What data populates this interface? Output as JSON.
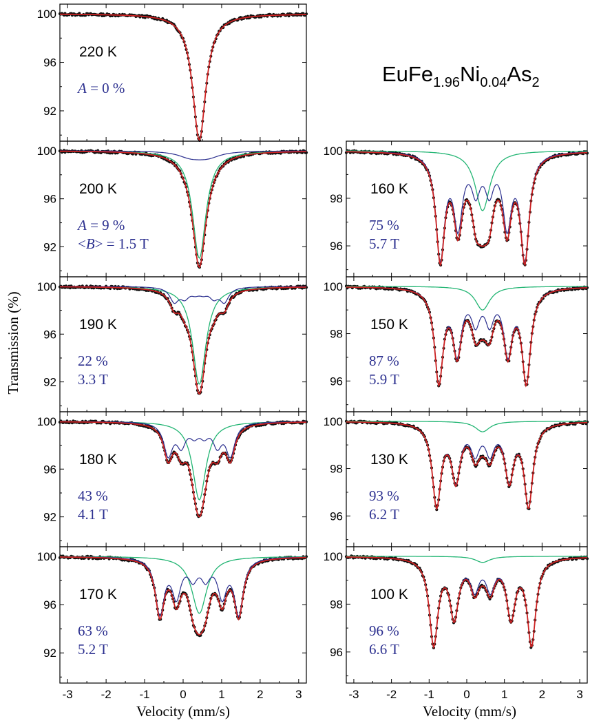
{
  "chart_data": {
    "type": "line",
    "compound": {
      "base": "EuFe",
      "sub1": "1.96",
      "mid": "Ni",
      "sub2": "0.04",
      "end": "As",
      "sub3": "2"
    },
    "ylabel": "Transmission (%)",
    "xlabel": "Velocity (mm/s)",
    "xlim": [
      -3.2,
      3.2
    ],
    "xticks": [
      "-3",
      "-2",
      "-1",
      "0",
      "1",
      "2",
      "3"
    ],
    "colors": {
      "data": "#111111",
      "fit": "#cc2222",
      "magnetic": "#2b2f8f",
      "paramagnetic": "#22b573",
      "annotation": "#2b2f8f"
    },
    "panels": [
      {
        "id": "220K",
        "col": 0,
        "row": 0,
        "temp": "220 K",
        "ann1_prefix": "",
        "ann1_var": "A",
        "ann1_text": " = 0 %",
        "ann2_prefix": "",
        "ann2_var": "",
        "ann2_text": "",
        "mag_fraction": 0.0,
        "field_T": 0.0,
        "ylim": [
          89.5,
          100.8
        ],
        "yticks": [
          "100",
          "96",
          "92"
        ],
        "min_transmission": 89.6
      },
      {
        "id": "200K",
        "col": 0,
        "row": 1,
        "temp": "200 K",
        "ann1_prefix": "",
        "ann1_var": "A",
        "ann1_text": " = 9 %",
        "ann2_prefix": "<",
        "ann2_var": "B",
        "ann2_text": "> = 1.5 T",
        "mag_fraction": 0.09,
        "field_T": 1.5,
        "ylim": [
          89.5,
          100.8
        ],
        "yticks": [
          "100",
          "96",
          "92"
        ],
        "min_transmission": 90.3
      },
      {
        "id": "190K",
        "col": 0,
        "row": 2,
        "temp": "190 K",
        "ann1_prefix": "",
        "ann1_var": "",
        "ann1_text": "22 %",
        "ann2_prefix": "",
        "ann2_var": "",
        "ann2_text": "3.3 T",
        "mag_fraction": 0.22,
        "field_T": 3.3,
        "ylim": [
          89.5,
          100.8
        ],
        "yticks": [
          "100",
          "96",
          "92"
        ],
        "min_transmission": 91.0
      },
      {
        "id": "180K",
        "col": 0,
        "row": 3,
        "temp": "180 K",
        "ann1_prefix": "",
        "ann1_var": "",
        "ann1_text": "43 %",
        "ann2_prefix": "",
        "ann2_var": "",
        "ann2_text": "4.1 T",
        "mag_fraction": 0.43,
        "field_T": 4.1,
        "ylim": [
          89.5,
          100.8
        ],
        "yticks": [
          "100",
          "96",
          "92"
        ],
        "min_transmission": 92.0
      },
      {
        "id": "170K",
        "col": 0,
        "row": 4,
        "temp": "170 K",
        "ann1_prefix": "",
        "ann1_var": "",
        "ann1_text": "63 %",
        "ann2_prefix": "",
        "ann2_var": "",
        "ann2_text": "5.2 T",
        "mag_fraction": 0.63,
        "field_T": 5.2,
        "ylim": [
          89.5,
          100.8
        ],
        "yticks": [
          "100",
          "96",
          "92"
        ],
        "min_transmission": 93.5
      },
      {
        "id": "160K",
        "col": 1,
        "row": 1,
        "temp": "160 K",
        "ann1_prefix": "",
        "ann1_var": "",
        "ann1_text": "75 %",
        "ann2_prefix": "",
        "ann2_var": "",
        "ann2_text": "5.7 T",
        "mag_fraction": 0.75,
        "field_T": 5.7,
        "ylim": [
          94.7,
          100.4
        ],
        "yticks": [
          "100",
          "98",
          "96"
        ],
        "min_transmission": 95.2
      },
      {
        "id": "150K",
        "col": 1,
        "row": 2,
        "temp": "150 K",
        "ann1_prefix": "",
        "ann1_var": "",
        "ann1_text": "87 %",
        "ann2_prefix": "",
        "ann2_var": "",
        "ann2_text": "5.9 T",
        "mag_fraction": 0.87,
        "field_T": 5.9,
        "ylim": [
          94.7,
          100.4
        ],
        "yticks": [
          "100",
          "98",
          "96"
        ],
        "min_transmission": 95.8
      },
      {
        "id": "130K",
        "col": 1,
        "row": 3,
        "temp": "130 K",
        "ann1_prefix": "",
        "ann1_var": "",
        "ann1_text": "93 %",
        "ann2_prefix": "",
        "ann2_var": "",
        "ann2_text": "6.2 T",
        "mag_fraction": 0.93,
        "field_T": 6.2,
        "ylim": [
          94.7,
          100.4
        ],
        "yticks": [
          "100",
          "98",
          "96"
        ],
        "min_transmission": 96.3
      },
      {
        "id": "100K",
        "col": 1,
        "row": 4,
        "temp": "100 K",
        "ann1_prefix": "",
        "ann1_var": "",
        "ann1_text": "96 %",
        "ann2_prefix": "",
        "ann2_var": "",
        "ann2_text": "6.6 T",
        "mag_fraction": 0.96,
        "field_T": 6.6,
        "ylim": [
          94.7,
          100.4
        ],
        "yticks": [
          "100",
          "98",
          "96"
        ],
        "min_transmission": 96.2
      }
    ]
  }
}
